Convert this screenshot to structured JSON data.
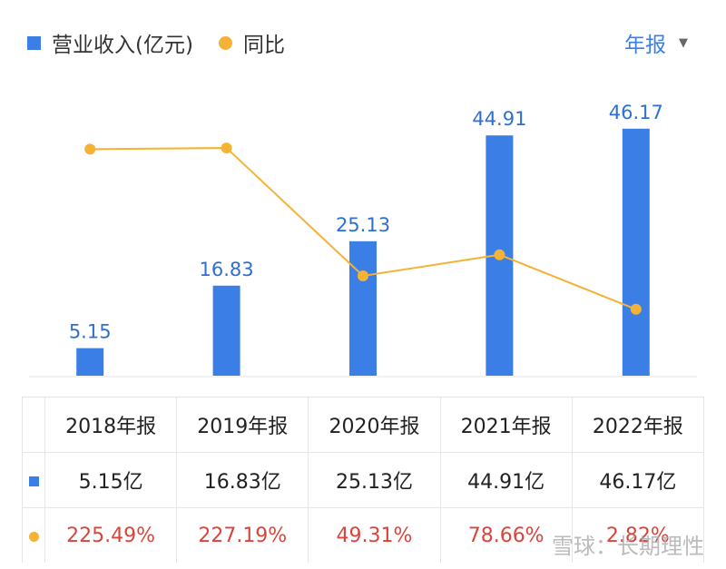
{
  "legend": {
    "revenue_label": "营业收入(亿元)",
    "yoy_label": "同比",
    "revenue_color": "#3b7ee6",
    "yoy_color": "#f5b234"
  },
  "period_selector": {
    "label": "年报",
    "icon": "caret-down-icon"
  },
  "chart_data": {
    "type": "bar",
    "categories": [
      "2018年报",
      "2019年报",
      "2020年报",
      "2021年报",
      "2022年报"
    ],
    "series": [
      {
        "name": "营业收入(亿元)",
        "type": "bar",
        "values": [
          5.15,
          16.83,
          25.13,
          44.91,
          46.17
        ],
        "labels": [
          "5.15",
          "16.83",
          "25.13",
          "44.91",
          "46.17"
        ],
        "color": "#3b7ee6"
      },
      {
        "name": "同比",
        "type": "line",
        "values": [
          225.49,
          227.19,
          49.31,
          78.66,
          2.82
        ],
        "color": "#f5b234"
      }
    ],
    "grid": false
  },
  "table": {
    "headers": [
      "2018年报",
      "2019年报",
      "2020年报",
      "2021年报",
      "2022年报"
    ],
    "revenue_row": [
      "5.15亿",
      "16.83亿",
      "25.13亿",
      "44.91亿",
      "46.17亿"
    ],
    "yoy_row": [
      "225.49%",
      "227.19%",
      "49.31%",
      "78.66%",
      "2.82%"
    ]
  },
  "watermark": "雪球：长期理性"
}
